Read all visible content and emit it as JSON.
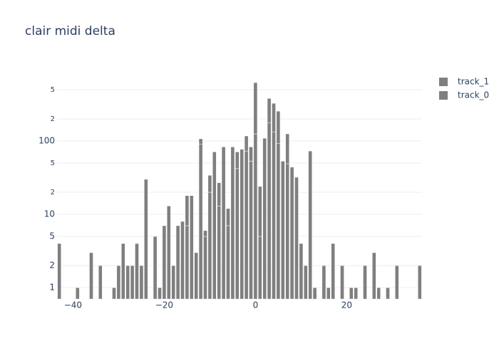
{
  "chart_data": {
    "type": "bar",
    "title": "clair midi delta",
    "barmode": "stack",
    "log_y": true,
    "grid": true,
    "xlim": [
      -43.5,
      36.5
    ],
    "xticks": [
      {
        "value": -40,
        "label": "−40"
      },
      {
        "value": -20,
        "label": "−20"
      },
      0,
      20
    ],
    "ylim": [
      0.7,
      894
    ],
    "yticks": [
      1,
      2,
      5,
      10,
      {
        "value": 20,
        "label": "2"
      },
      {
        "value": 50,
        "label": "5"
      },
      100,
      {
        "value": 200,
        "label": "2"
      },
      {
        "value": 500,
        "label": "5"
      }
    ],
    "series": [
      {
        "name": "track_1",
        "color": "#7f7f7f",
        "x": [
          -15,
          -12,
          -11,
          -10,
          -8,
          -6,
          -4,
          -2,
          -1,
          0,
          1,
          3,
          4,
          5,
          7
        ],
        "values": [
          11,
          17,
          1,
          14,
          14,
          5,
          29,
          44,
          30,
          500,
          19,
          202,
          193,
          163,
          76
        ]
      },
      {
        "name": "track_0",
        "color": "#7f7f7f",
        "x": [
          -43,
          -39,
          -36,
          -34,
          -31,
          -30,
          -29,
          -28,
          -27,
          -26,
          -25,
          -24,
          -22,
          -21,
          -20,
          -19,
          -18,
          -17,
          -16,
          -15,
          -14,
          -13,
          -12,
          -11,
          -10,
          -9,
          -8,
          -7,
          -6,
          -5,
          -4,
          -3,
          -2,
          -1,
          0,
          1,
          2,
          3,
          4,
          5,
          6,
          7,
          8,
          9,
          10,
          11,
          12,
          13,
          15,
          16,
          17,
          19,
          21,
          22,
          24,
          26,
          27,
          29,
          31,
          36
        ],
        "values": [
          4,
          1,
          3,
          2,
          1,
          2,
          4,
          2,
          2,
          4,
          2,
          30,
          5,
          1,
          7,
          13,
          2,
          7,
          8,
          7,
          18,
          3,
          90,
          5,
          20,
          71,
          13,
          83,
          7,
          83,
          42,
          77,
          73,
          53,
          125,
          5,
          109,
          178,
          133,
          92,
          53,
          49,
          44,
          32,
          4,
          2,
          73,
          1,
          2,
          1,
          4,
          2,
          1,
          1,
          2,
          3,
          1,
          1,
          2,
          2
        ]
      }
    ]
  }
}
